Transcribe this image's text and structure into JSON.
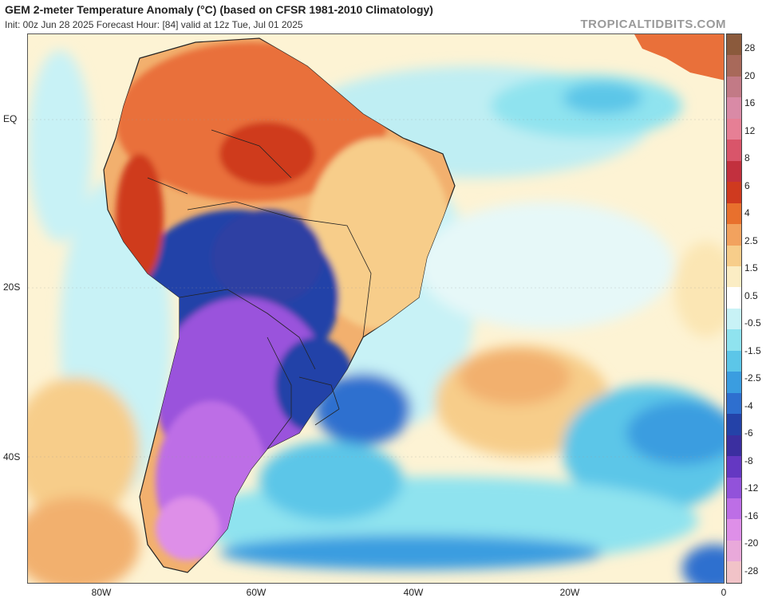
{
  "header": {
    "title": "GEM 2-meter Temperature Anomaly (°C) (based on CFSR 1981-2010 Climatology)",
    "subtitle": "Init: 00z Jun 28 2025   Forecast Hour: [84]   valid at 12z Tue, Jul 01 2025",
    "brand": "TROPICALTIDBITS.COM"
  },
  "axes": {
    "lat_labels": [
      "EQ",
      "20S",
      "40S"
    ],
    "lon_labels": [
      "80W",
      "60W",
      "40W",
      "20W",
      "0"
    ]
  },
  "colorbar": {
    "labels": [
      "28",
      "20",
      "16",
      "12",
      "8",
      "6",
      "4",
      "2.5",
      "1.5",
      "0.5",
      "-0.5",
      "-1.5",
      "-2.5",
      "-4",
      "-6",
      "-8",
      "-12",
      "-16",
      "-20",
      "-28"
    ],
    "colors": [
      "#8b5a3c",
      "#a8695a",
      "#c27a86",
      "#d98aa6",
      "#e67f95",
      "#d9556a",
      "#c2303e",
      "#cf3a1f",
      "#e8702d",
      "#f2a25e",
      "#f7cd8a",
      "#fbedc4",
      "#ffffff",
      "#c8f2f6",
      "#8fe3ef",
      "#5cc6e8",
      "#3a9de0",
      "#2e6fcf",
      "#2442a8",
      "#3b2fa0",
      "#6438c2",
      "#9252da",
      "#bd6ee6",
      "#de8fe8",
      "#e9a9da",
      "#f1c3c8"
    ]
  },
  "map": {
    "ocean_color": "#fdf3d4",
    "warm_color": "#e9703a",
    "cold_color": "#2b3fa3",
    "cold_purple": "#9a52dc",
    "cool_color": "#5cc6e8"
  }
}
